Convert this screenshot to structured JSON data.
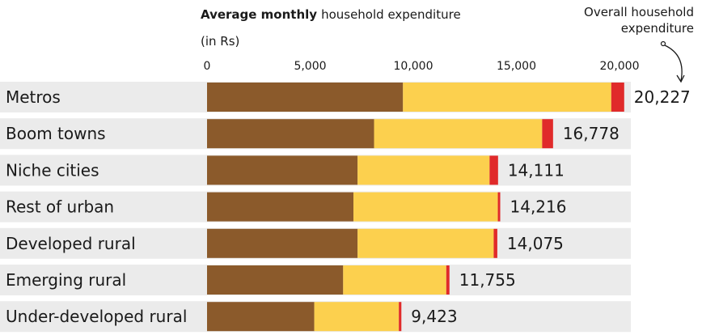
{
  "chart_data": {
    "type": "bar",
    "stacked": true,
    "orientation": "horizontal",
    "title_bold": "Average monthly",
    "title_rest": "household expenditure",
    "subtitle": "(in Rs)",
    "annotation_line1": "Overall household",
    "annotation_line2": "expenditure",
    "xlim": [
      0,
      20227
    ],
    "ticks": [
      0,
      5000,
      10000,
      15000,
      20000
    ],
    "tick_labels": [
      "0",
      "5,000",
      "10,000",
      "15,000",
      "20,000"
    ],
    "categories": [
      "Metros",
      "Boom towns",
      "Niche cities",
      "Rest of urban",
      "Developed rural",
      "Emerging rural",
      "Under-developed rural"
    ],
    "series": [
      {
        "color": "#8B5A2B",
        "values": [
          9500,
          8100,
          7300,
          7100,
          7300,
          6600,
          5200
        ]
      },
      {
        "color": "#FCD04E",
        "values": [
          10100,
          8150,
          6400,
          7000,
          6600,
          5000,
          4100
        ]
      },
      {
        "color": "#E02A2A",
        "values": [
          627,
          528,
          411,
          116,
          175,
          155,
          123
        ]
      }
    ],
    "totals": [
      20227,
      16778,
      14111,
      14216,
      14075,
      11755,
      9423
    ],
    "total_labels": [
      "20,227",
      "16,778",
      "14,111",
      "14,216",
      "14,075",
      "11,755",
      "9,423"
    ],
    "row_background": "#EBEBEB",
    "grid": false
  }
}
